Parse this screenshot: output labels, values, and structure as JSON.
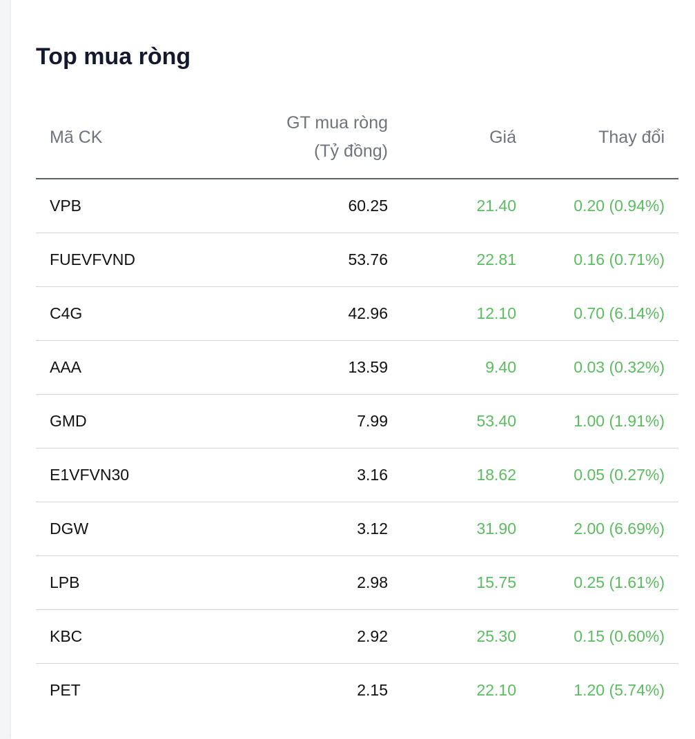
{
  "widget": {
    "title": "Top mua ròng"
  },
  "table": {
    "headers": {
      "code": "Mã CK",
      "value_line1": "GT mua ròng",
      "value_line2": "(Tỷ đồng)",
      "price": "Giá",
      "change": "Thay đổi"
    },
    "rows": [
      {
        "code": "VPB",
        "value": "60.25",
        "price": "21.40",
        "change": "0.20 (0.94%)"
      },
      {
        "code": "FUEVFVND",
        "value": "53.76",
        "price": "22.81",
        "change": "0.16 (0.71%)"
      },
      {
        "code": "C4G",
        "value": "42.96",
        "price": "12.10",
        "change": "0.70 (6.14%)"
      },
      {
        "code": "AAA",
        "value": "13.59",
        "price": "9.40",
        "change": "0.03 (0.32%)"
      },
      {
        "code": "GMD",
        "value": "7.99",
        "price": "53.40",
        "change": "1.00 (1.91%)"
      },
      {
        "code": "E1VFVN30",
        "value": "3.16",
        "price": "18.62",
        "change": "0.05 (0.27%)"
      },
      {
        "code": "DGW",
        "value": "3.12",
        "price": "31.90",
        "change": "2.00 (6.69%)"
      },
      {
        "code": "LPB",
        "value": "2.98",
        "price": "15.75",
        "change": "0.25 (1.61%)"
      },
      {
        "code": "KBC",
        "value": "2.92",
        "price": "25.30",
        "change": "0.15 (0.60%)"
      },
      {
        "code": "PET",
        "value": "2.15",
        "price": "22.10",
        "change": "1.20 (5.74%)"
      }
    ]
  },
  "colors": {
    "up": "#5bbd5f",
    "title": "#141a2e",
    "header_text": "#6f737c"
  }
}
